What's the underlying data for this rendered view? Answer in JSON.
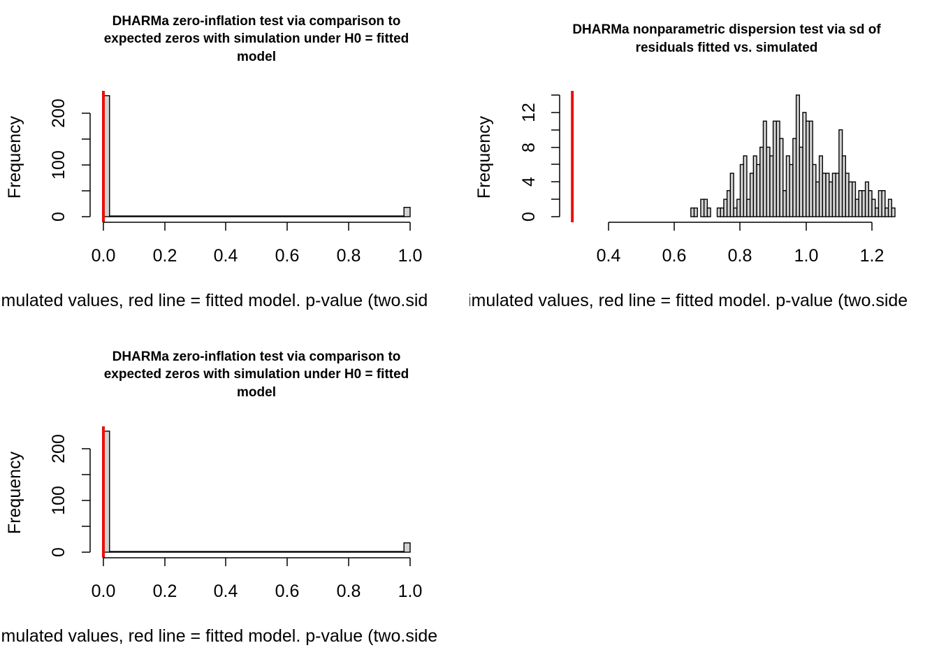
{
  "colors": {
    "bar_fill": "#d3d3d3",
    "bar_stroke": "#000000",
    "observed_line": "#e8100b"
  },
  "chart_data": [
    {
      "type": "bar",
      "title_lines": [
        "DHARMa zero-inflation test via comparison to",
        "expected zeros with simulation under H0 = fitted",
        "model"
      ],
      "xlabel": "imulated values, red line = fitted model. p-value (two.sid",
      "ylabel": "Frequency",
      "xlim": [
        0,
        1
      ],
      "ylim": [
        0,
        235
      ],
      "xticks": [
        "0.0",
        "0.2",
        "0.4",
        "0.6",
        "0.8",
        "1.0"
      ],
      "yticks": [
        "0",
        "100",
        "200"
      ],
      "bins": [
        {
          "x0": 0.0,
          "x1": 0.02,
          "count": 234
        },
        {
          "x0": 0.02,
          "x1": 0.98,
          "count": 0
        },
        {
          "x0": 0.98,
          "x1": 1.0,
          "count": 18
        }
      ],
      "observed": 0.0
    },
    {
      "type": "bar",
      "title_lines": [
        "DHARMa nonparametric dispersion test via sd of",
        "residuals fitted vs. simulated"
      ],
      "xlabel": "imulated values, red line = fitted model. p-value (two.side",
      "ylabel": "Frequency",
      "xlim": [
        0.4,
        1.2
      ],
      "ylim": [
        0,
        14
      ],
      "xticks": [
        "0.4",
        "0.6",
        "0.8",
        "1.0",
        "1.2"
      ],
      "yticks": [
        "0",
        "4",
        "8",
        "12"
      ],
      "bin_start": 0.65,
      "bin_width": 0.01,
      "counts": [
        1,
        1,
        0,
        2,
        2,
        1,
        0,
        0,
        1,
        1,
        2,
        3,
        5,
        1,
        2,
        6,
        7,
        2,
        5,
        7,
        6,
        8,
        11,
        8,
        7,
        11,
        11,
        9,
        3,
        7,
        6,
        9,
        14,
        8,
        12,
        11,
        11,
        6,
        4,
        7,
        5,
        5,
        4,
        5,
        5,
        10,
        7,
        5,
        4,
        4,
        2,
        3,
        3,
        4,
        3,
        2,
        1,
        3,
        3,
        1,
        2,
        1,
        0,
        0,
        0,
        0,
        0,
        0,
        0,
        0,
        0,
        0,
        0,
        0,
        0,
        0,
        0,
        0,
        1
      ],
      "observed": 0.29
    },
    {
      "type": "bar",
      "title_lines": [
        "DHARMa zero-inflation test via comparison to",
        "expected zeros with simulation under H0 = fitted",
        "model"
      ],
      "xlabel": "imulated values, red line = fitted model. p-value (two.side",
      "ylabel": "Frequency",
      "xlim": [
        0,
        1
      ],
      "ylim": [
        0,
        235
      ],
      "xticks": [
        "0.0",
        "0.2",
        "0.4",
        "0.6",
        "0.8",
        "1.0"
      ],
      "yticks": [
        "0",
        "100",
        "200"
      ],
      "bins": [
        {
          "x0": 0.0,
          "x1": 0.02,
          "count": 234
        },
        {
          "x0": 0.02,
          "x1": 0.98,
          "count": 0
        },
        {
          "x0": 0.98,
          "x1": 1.0,
          "count": 18
        }
      ],
      "observed": 0.0
    }
  ]
}
